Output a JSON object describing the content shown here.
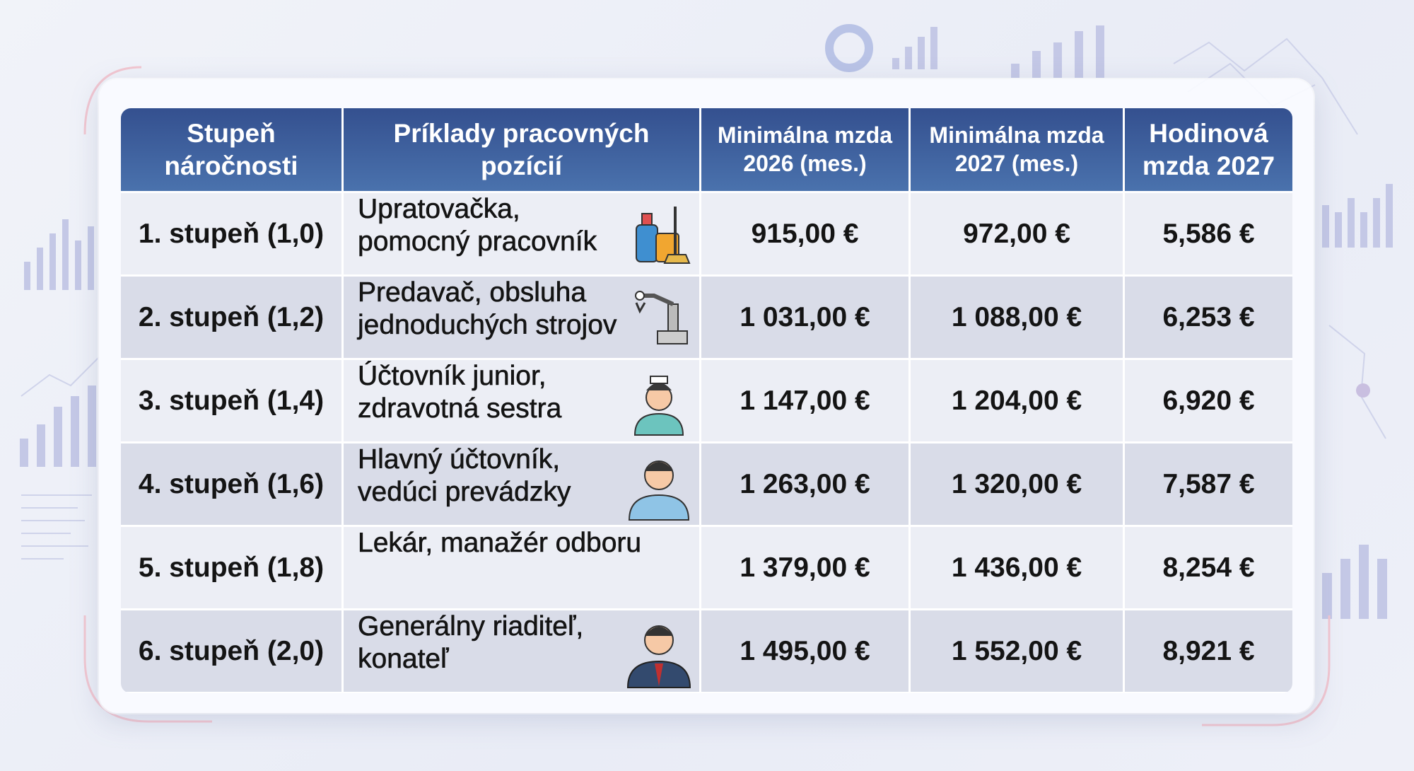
{
  "table": {
    "headers": [
      "Stupeň náročnosti",
      "Príklady pracovných pozícií",
      "Minimálna mzda 2026 (mes.)",
      "Minimálna mzda 2027 (mes.)",
      "Hodinová mzda 2027"
    ],
    "rows": [
      {
        "level": "1. stupeň (1,0)",
        "positions": [
          "Upratovačka,",
          "pomocný pracovník"
        ],
        "wage_2026": "915,00 €",
        "wage_2027": "972,00 €",
        "hourly_2027": "5,586 €"
      },
      {
        "level": "2. stupeň (1,2)",
        "positions": [
          "Predavač, obsluha",
          "jednoduchých strojov"
        ],
        "wage_2026": "1 031,00 €",
        "wage_2027": "1 088,00 €",
        "hourly_2027": "6,253 €"
      },
      {
        "level": "3. stupeň (1,4)",
        "positions": [
          "Účtovník junior,",
          "zdravotná sestra"
        ],
        "wage_2026": "1 147,00 €",
        "wage_2027": "1 204,00 €",
        "hourly_2027": "6,920 €"
      },
      {
        "level": "4. stupeň (1,6)",
        "positions": [
          "Hlavný účtovník,",
          "vedúci prevádzky"
        ],
        "wage_2026": "1 263,00 €",
        "wage_2027": "1 320,00 €",
        "hourly_2027": "7,587 €"
      },
      {
        "level": "5. stupeň (1,8)",
        "positions": [
          "Lekár, manažér odboru"
        ],
        "wage_2026": "1 379,00 €",
        "wage_2027": "1 436,00 €",
        "hourly_2027": "8,254 €"
      },
      {
        "level": "6. stupeň (2,0)",
        "positions": [
          "Generálny riaditeľ,",
          "konateľ"
        ],
        "wage_2026": "1 495,00 €",
        "wage_2027": "1 552,00 €",
        "hourly_2027": "8,921 €"
      }
    ]
  }
}
